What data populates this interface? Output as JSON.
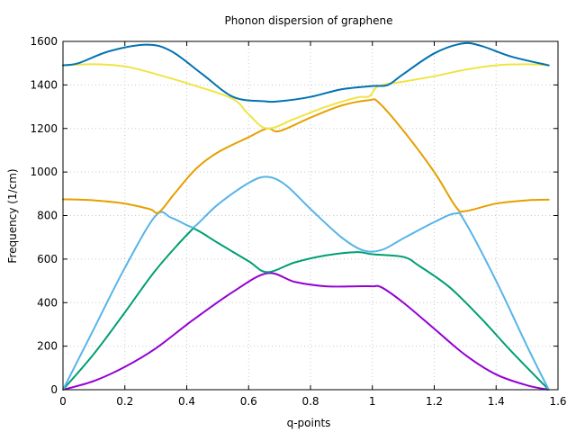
{
  "chart_data": {
    "type": "line",
    "title": "Phonon dispersion of graphene",
    "xlabel": "q-points",
    "ylabel": "Frequency (1/cm)",
    "xlim": [
      0,
      1.6
    ],
    "ylim": [
      0,
      1600
    ],
    "xticks": [
      "0",
      "0.2",
      "0.4",
      "0.6",
      "0.8",
      "1",
      "1.2",
      "1.4",
      "1.6"
    ],
    "yticks": [
      "0",
      "200",
      "400",
      "600",
      "800",
      "1000",
      "1200",
      "1400",
      "1600"
    ],
    "grid": true,
    "legend": "none",
    "series": [
      {
        "color": "#9400d3",
        "points": [
          [
            0,
            0
          ],
          [
            0.1,
            40
          ],
          [
            0.2,
            105
          ],
          [
            0.3,
            190
          ],
          [
            0.42,
            320
          ],
          [
            0.55,
            450
          ],
          [
            0.66,
            535
          ],
          [
            0.75,
            495
          ],
          [
            0.85,
            475
          ],
          [
            0.95,
            475
          ],
          [
            1.0,
            475
          ],
          [
            1.03,
            470
          ],
          [
            1.1,
            400
          ],
          [
            1.2,
            280
          ],
          [
            1.3,
            160
          ],
          [
            1.4,
            70
          ],
          [
            1.5,
            20
          ],
          [
            1.57,
            0
          ]
        ]
      },
      {
        "color": "#009e73",
        "points": [
          [
            0,
            0
          ],
          [
            0.1,
            165
          ],
          [
            0.2,
            355
          ],
          [
            0.3,
            550
          ],
          [
            0.41,
            725
          ],
          [
            0.43,
            735
          ],
          [
            0.5,
            675
          ],
          [
            0.6,
            590
          ],
          [
            0.66,
            540
          ],
          [
            0.75,
            585
          ],
          [
            0.85,
            617
          ],
          [
            0.95,
            632
          ],
          [
            1.0,
            622
          ],
          [
            1.1,
            610
          ],
          [
            1.15,
            570
          ],
          [
            1.25,
            470
          ],
          [
            1.35,
            330
          ],
          [
            1.45,
            175
          ],
          [
            1.57,
            0
          ]
        ]
      },
      {
        "color": "#56b4e9",
        "points": [
          [
            0,
            0
          ],
          [
            0.1,
            280
          ],
          [
            0.2,
            560
          ],
          [
            0.3,
            800
          ],
          [
            0.35,
            790
          ],
          [
            0.41,
            750
          ],
          [
            0.43,
            755
          ],
          [
            0.5,
            850
          ],
          [
            0.6,
            950
          ],
          [
            0.66,
            978
          ],
          [
            0.72,
            940
          ],
          [
            0.8,
            830
          ],
          [
            0.9,
            700
          ],
          [
            0.97,
            640
          ],
          [
            1.03,
            642
          ],
          [
            1.1,
            695
          ],
          [
            1.2,
            770
          ],
          [
            1.27,
            810
          ],
          [
            1.3,
            770
          ],
          [
            1.4,
            500
          ],
          [
            1.5,
            200
          ],
          [
            1.57,
            0
          ]
        ]
      },
      {
        "color": "#e69f00",
        "points": [
          [
            0,
            875
          ],
          [
            0.1,
            870
          ],
          [
            0.2,
            855
          ],
          [
            0.28,
            830
          ],
          [
            0.31,
            815
          ],
          [
            0.36,
            900
          ],
          [
            0.43,
            1015
          ],
          [
            0.5,
            1090
          ],
          [
            0.6,
            1160
          ],
          [
            0.66,
            1200
          ],
          [
            0.7,
            1188
          ],
          [
            0.8,
            1250
          ],
          [
            0.9,
            1305
          ],
          [
            0.99,
            1330
          ],
          [
            1.02,
            1320
          ],
          [
            1.1,
            1190
          ],
          [
            1.2,
            1000
          ],
          [
            1.27,
            840
          ],
          [
            1.3,
            820
          ],
          [
            1.4,
            855
          ],
          [
            1.5,
            870
          ],
          [
            1.57,
            873
          ]
        ]
      },
      {
        "color": "#f0e442",
        "points": [
          [
            0,
            1490
          ],
          [
            0.1,
            1495
          ],
          [
            0.2,
            1485
          ],
          [
            0.3,
            1450
          ],
          [
            0.43,
            1395
          ],
          [
            0.55,
            1335
          ],
          [
            0.6,
            1265
          ],
          [
            0.66,
            1200
          ],
          [
            0.75,
            1245
          ],
          [
            0.85,
            1300
          ],
          [
            0.95,
            1342
          ],
          [
            0.99,
            1348
          ],
          [
            1.02,
            1395
          ],
          [
            1.1,
            1415
          ],
          [
            1.2,
            1440
          ],
          [
            1.3,
            1470
          ],
          [
            1.4,
            1490
          ],
          [
            1.5,
            1495
          ],
          [
            1.57,
            1490
          ]
        ]
      },
      {
        "color": "#0072b2",
        "points": [
          [
            0,
            1490
          ],
          [
            0.05,
            1500
          ],
          [
            0.15,
            1555
          ],
          [
            0.27,
            1585
          ],
          [
            0.35,
            1555
          ],
          [
            0.45,
            1450
          ],
          [
            0.55,
            1345
          ],
          [
            0.65,
            1325
          ],
          [
            0.7,
            1325
          ],
          [
            0.8,
            1345
          ],
          [
            0.9,
            1380
          ],
          [
            1.0,
            1395
          ],
          [
            1.05,
            1400
          ],
          [
            1.1,
            1450
          ],
          [
            1.2,
            1545
          ],
          [
            1.29,
            1590
          ],
          [
            1.35,
            1580
          ],
          [
            1.45,
            1530
          ],
          [
            1.57,
            1490
          ]
        ]
      }
    ]
  }
}
